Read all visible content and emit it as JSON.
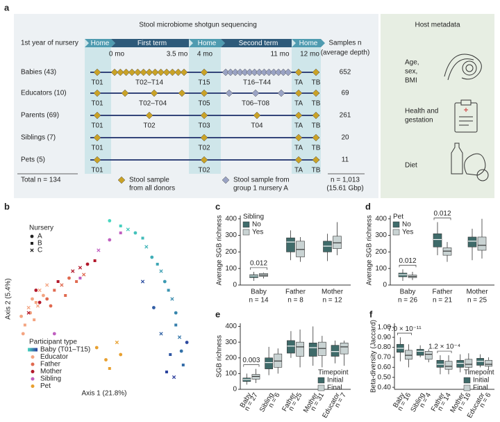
{
  "panel_a": {
    "label": "a",
    "title": "Stool microbiome shotgun sequencing",
    "header_label": "1st year of nursery",
    "phases": [
      "Home",
      "First term",
      "Home",
      "Second term",
      "Home"
    ],
    "months": [
      "0 mo",
      "3.5 mo",
      "4 mo",
      "11 mo",
      "12 mo"
    ],
    "samples_header": [
      "Samples n",
      "(average depth)"
    ],
    "rows": [
      {
        "name": "Babies (43)",
        "samples": "652",
        "labels": [
          "T01",
          "T02–T14",
          "T15",
          "T16–T44",
          "TA",
          "TB"
        ]
      },
      {
        "name": "Educators (10)",
        "samples": "69",
        "labels": [
          "T01",
          "T02–T04",
          "T05",
          "T06–T08",
          "TA",
          "TB"
        ]
      },
      {
        "name": "Parents (69)",
        "samples": "261",
        "labels": [
          "T01",
          "T02",
          "T03",
          "T04",
          "TA",
          "TB"
        ]
      },
      {
        "name": "Siblings (7)",
        "samples": "20",
        "labels": [
          "T01",
          "T02",
          "TA",
          "TB"
        ]
      },
      {
        "name": "Pets (5)",
        "samples": "11",
        "labels": [
          "T01",
          "T02",
          "TA",
          "TB"
        ]
      }
    ],
    "total": "Total n = 134",
    "legend": [
      [
        "Stool sample",
        "from all donors"
      ],
      [
        "Stool sample from",
        "group 1 nursery A"
      ]
    ],
    "total_samples": [
      "n = 1,013",
      "(15.61 Gbp)"
    ]
  },
  "host_metadata": {
    "title": "Host metadata",
    "items": [
      [
        "Age,",
        "sex,",
        "BMI"
      ],
      [
        "Health and",
        "gestation"
      ],
      [
        "Diet"
      ]
    ]
  },
  "chart_data": [
    {
      "type": "scatter",
      "label": "b",
      "xlabel": "Axis 1 (21.8%)",
      "ylabel": "Axis 2 (5.4%)",
      "xlim": [
        0,
        100
      ],
      "ylim": [
        0,
        100
      ],
      "nursery_title": "Nursery",
      "nurseries": [
        "A",
        "B",
        "C"
      ],
      "legend_title": "Participant type",
      "series": [
        {
          "name": "Baby (T01–T15)",
          "colors": [
            "#48d6c0",
            "#2a3c9c"
          ],
          "x": [
            52,
            58,
            62,
            66,
            70,
            72,
            75,
            78,
            80,
            82,
            84,
            86,
            88,
            88,
            90,
            91,
            92,
            80,
            76,
            85,
            70,
            94,
            83,
            87
          ],
          "y": [
            95,
            92,
            90,
            88,
            85,
            80,
            74,
            70,
            66,
            60,
            55,
            50,
            42,
            35,
            28,
            20,
            12,
            30,
            45,
            18,
            60,
            25,
            8,
            5
          ],
          "nursery": [
            0,
            1,
            2,
            0,
            1,
            2,
            0,
            1,
            2,
            0,
            1,
            2,
            0,
            1,
            2,
            0,
            1,
            2,
            0,
            1,
            2,
            0,
            1,
            2
          ]
        },
        {
          "name": "Educator",
          "color": "#f4a582",
          "x": [
            4,
            6,
            8,
            10,
            12,
            14,
            16,
            9,
            18,
            5,
            11,
            13
          ],
          "y": [
            40,
            35,
            45,
            50,
            48,
            55,
            52,
            42,
            58,
            30,
            38,
            46
          ],
          "nursery": [
            0,
            1,
            2,
            0,
            1,
            2,
            0,
            1,
            2,
            0,
            1,
            2
          ]
        },
        {
          "name": "Father",
          "color": "#e06a50",
          "x": [
            18,
            22,
            26,
            30,
            34,
            38,
            20,
            28
          ],
          "y": [
            50,
            55,
            58,
            62,
            60,
            64,
            46,
            52
          ],
          "nursery": [
            0,
            1,
            2,
            0,
            1,
            2,
            0,
            1
          ]
        },
        {
          "name": "Mother",
          "color": "#b2182b",
          "x": [
            8,
            14,
            24,
            32,
            40,
            44,
            36,
            12
          ],
          "y": [
            42,
            48,
            60,
            66,
            70,
            72,
            68,
            55
          ],
          "nursery": [
            2,
            0,
            1,
            2,
            0,
            1,
            2,
            0
          ]
        },
        {
          "name": "Sibling",
          "color": "#c060c0",
          "x": [
            22,
            36,
            46,
            52,
            58
          ],
          "y": [
            30,
            62,
            78,
            84,
            88
          ],
          "nursery": [
            0,
            1,
            2,
            0,
            1
          ]
        },
        {
          "name": "Pet",
          "color": "#e8a030",
          "x": [
            45,
            50,
            52,
            56,
            58
          ],
          "y": [
            22,
            15,
            10,
            25,
            18
          ],
          "nursery": [
            0,
            0,
            1,
            2,
            0
          ]
        }
      ]
    },
    {
      "type": "box",
      "label": "c",
      "ylabel": "Average SGB richness",
      "legend_title": "Sibling",
      "categories": [
        "Baby",
        "Father",
        "Mother"
      ],
      "n_labels": [
        "n = 14",
        "n = 8",
        "n = 12"
      ],
      "ylim": [
        0,
        420
      ],
      "yticks": [
        0,
        100,
        200,
        300,
        400
      ],
      "annotations": [
        "0.012"
      ],
      "series": [
        {
          "name": "No",
          "color": "#3f6b6a",
          "values": [
            {
              "min": 25,
              "q1": 45,
              "median": 55,
              "q3": 62,
              "max": 80
            },
            {
              "min": 150,
              "q1": 200,
              "median": 260,
              "q3": 285,
              "max": 330
            },
            {
              "min": 145,
              "q1": 200,
              "median": 235,
              "q3": 265,
              "max": 310
            }
          ]
        },
        {
          "name": "Yes",
          "color": "#c9d3d3",
          "values": [
            {
              "min": 40,
              "q1": 52,
              "median": 60,
              "q3": 70,
              "max": 75
            },
            {
              "min": 140,
              "q1": 170,
              "median": 215,
              "q3": 265,
              "max": 290
            },
            {
              "min": 180,
              "q1": 220,
              "median": 255,
              "q3": 295,
              "max": 380
            }
          ]
        }
      ]
    },
    {
      "type": "box",
      "label": "d",
      "ylabel": "Average SGB richness",
      "legend_title": "Pet",
      "categories": [
        "Baby",
        "Father",
        "Mother"
      ],
      "n_labels": [
        "n = 26",
        "n = 21",
        "n = 25"
      ],
      "ylim": [
        0,
        420
      ],
      "yticks": [
        0,
        100,
        200,
        300,
        400
      ],
      "annotations": [
        "0.012",
        "0.012"
      ],
      "series": [
        {
          "name": "No",
          "color": "#3f6b6a",
          "values": [
            {
              "min": 25,
              "q1": 50,
              "median": 62,
              "q3": 72,
              "max": 95
            },
            {
              "min": 180,
              "q1": 230,
              "median": 275,
              "q3": 310,
              "max": 380
            },
            {
              "min": 150,
              "q1": 230,
              "median": 265,
              "q3": 290,
              "max": 340
            }
          ]
        },
        {
          "name": "Yes",
          "color": "#c9d3d3",
          "values": [
            {
              "min": 30,
              "q1": 45,
              "median": 52,
              "q3": 60,
              "max": 80
            },
            {
              "min": 140,
              "q1": 180,
              "median": 205,
              "q3": 225,
              "max": 260
            },
            {
              "min": 160,
              "q1": 210,
              "median": 240,
              "q3": 290,
              "max": 400
            }
          ]
        }
      ]
    },
    {
      "type": "box",
      "label": "e",
      "ylabel": "SGB richness",
      "legend_title": "Timepoint",
      "categories": [
        "Baby",
        "Sibling",
        "Father",
        "Mother",
        "Educator"
      ],
      "n_labels": [
        "n = 27",
        "n = 6",
        "n = 25",
        "n = 31",
        "n = 7"
      ],
      "ylim": [
        0,
        420
      ],
      "yticks": [
        0,
        100,
        200,
        300,
        400
      ],
      "annotations": [
        "0.003"
      ],
      "series": [
        {
          "name": "Initial",
          "color": "#3f6b6a",
          "values": [
            {
              "min": 30,
              "q1": 50,
              "median": 62,
              "q3": 72,
              "max": 100
            },
            {
              "min": 90,
              "q1": 130,
              "median": 170,
              "q3": 200,
              "max": 270
            },
            {
              "min": 200,
              "q1": 230,
              "median": 275,
              "q3": 310,
              "max": 370
            },
            {
              "min": 150,
              "q1": 210,
              "median": 265,
              "q3": 295,
              "max": 400
            },
            {
              "min": 165,
              "q1": 210,
              "median": 240,
              "q3": 280,
              "max": 310
            }
          ]
        },
        {
          "name": "Final",
          "color": "#c9d3d3",
          "values": [
            {
              "min": 40,
              "q1": 65,
              "median": 82,
              "q3": 95,
              "max": 130
            },
            {
              "min": 100,
              "q1": 140,
              "median": 180,
              "q3": 225,
              "max": 260
            },
            {
              "min": 140,
              "q1": 210,
              "median": 270,
              "q3": 300,
              "max": 380
            },
            {
              "min": 140,
              "q1": 215,
              "median": 260,
              "q3": 300,
              "max": 340
            },
            {
              "min": 150,
              "q1": 225,
              "median": 270,
              "q3": 295,
              "max": 310
            }
          ]
        }
      ]
    },
    {
      "type": "box",
      "label": "f",
      "ylabel": "Beta-diversity (Jaccard)",
      "legend_title": "Timepoint",
      "categories": [
        "Baby",
        "Sibling",
        "Father",
        "Mother",
        "Educator"
      ],
      "n_labels": [
        "n = 16",
        "n = 4",
        "n = 14",
        "n = 16",
        "n = 6"
      ],
      "ylim": [
        0.38,
        1.04
      ],
      "yticks": [
        {
          "value": 0.4,
          "label": "0.40"
        },
        {
          "value": 0.5,
          "label": "0.50"
        },
        {
          "value": 0.6,
          "label": "0.60"
        },
        {
          "value": 0.7,
          "label": "0.70"
        },
        {
          "value": 0.8,
          "label": "0.80"
        },
        {
          "value": 0.9,
          "label": "0.90"
        },
        {
          "value": 1.0,
          "label": "1.00"
        }
      ],
      "annotations": [
        "7.0 × 10⁻¹¹",
        "1.2 × 10⁻⁴"
      ],
      "series": [
        {
          "name": "Initial",
          "color": "#3f6b6a",
          "values": [
            {
              "min": 0.66,
              "q1": 0.75,
              "median": 0.79,
              "q3": 0.83,
              "max": 0.9
            },
            {
              "min": 0.7,
              "q1": 0.72,
              "median": 0.76,
              "q3": 0.78,
              "max": 0.82
            },
            {
              "min": 0.53,
              "q1": 0.6,
              "median": 0.63,
              "q3": 0.67,
              "max": 0.72
            },
            {
              "min": 0.55,
              "q1": 0.6,
              "median": 0.64,
              "q3": 0.67,
              "max": 0.73
            },
            {
              "min": 0.6,
              "q1": 0.62,
              "median": 0.66,
              "q3": 0.69,
              "max": 0.73
            }
          ]
        },
        {
          "name": "Final",
          "color": "#c9d3d3",
          "values": [
            {
              "min": 0.6,
              "q1": 0.68,
              "median": 0.72,
              "q3": 0.77,
              "max": 0.83
            },
            {
              "min": 0.65,
              "q1": 0.68,
              "median": 0.73,
              "q3": 0.76,
              "max": 0.78
            },
            {
              "min": 0.53,
              "q1": 0.58,
              "median": 0.61,
              "q3": 0.66,
              "max": 0.72
            },
            {
              "min": 0.53,
              "q1": 0.6,
              "median": 0.63,
              "q3": 0.68,
              "max": 0.74
            },
            {
              "min": 0.57,
              "q1": 0.61,
              "median": 0.63,
              "q3": 0.67,
              "max": 0.7
            }
          ]
        }
      ]
    }
  ]
}
